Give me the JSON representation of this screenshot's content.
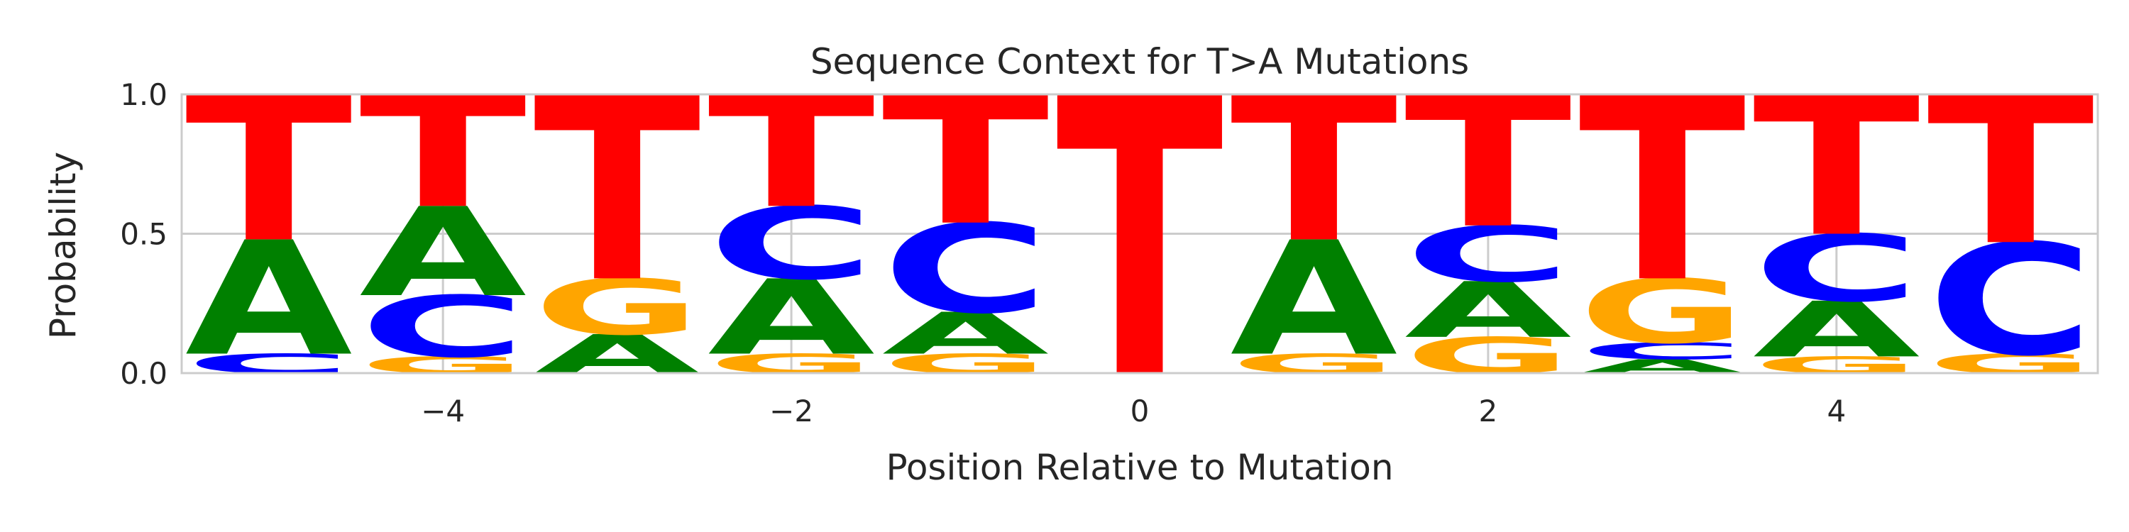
{
  "chart_data": {
    "type": "sequence-logo",
    "title": "Sequence Context for T>A Mutations",
    "xlabel": "Position Relative to Mutation",
    "ylabel": "Probability",
    "xlim": [
      -5.5,
      5.5
    ],
    "ylim": [
      0,
      1.0
    ],
    "xticks": [
      -4,
      -2,
      0,
      2,
      4
    ],
    "xtick_labels": [
      "−4",
      "−2",
      "0",
      "2",
      "4"
    ],
    "yticks": [
      0.0,
      0.5,
      1.0
    ],
    "ytick_labels": [
      "0.0",
      "0.5",
      "1.0"
    ],
    "grid": true,
    "letter_colors": {
      "A": "#008000",
      "C": "#0000ff",
      "G": "#ffa500",
      "T": "#ff0000"
    },
    "positions": [
      {
        "x": -5,
        "stack": [
          {
            "base": "C",
            "value": 0.07
          },
          {
            "base": "A",
            "value": 0.41
          },
          {
            "base": "T",
            "value": 0.52
          }
        ]
      },
      {
        "x": -4,
        "stack": [
          {
            "base": "G",
            "value": 0.06
          },
          {
            "base": "C",
            "value": 0.22
          },
          {
            "base": "A",
            "value": 0.32
          },
          {
            "base": "T",
            "value": 0.4
          }
        ]
      },
      {
        "x": -3,
        "stack": [
          {
            "base": "A",
            "value": 0.14
          },
          {
            "base": "G",
            "value": 0.2
          },
          {
            "base": "T",
            "value": 0.66
          }
        ]
      },
      {
        "x": -2,
        "stack": [
          {
            "base": "G",
            "value": 0.07
          },
          {
            "base": "A",
            "value": 0.27
          },
          {
            "base": "C",
            "value": 0.26
          },
          {
            "base": "T",
            "value": 0.4
          }
        ]
      },
      {
        "x": -1,
        "stack": [
          {
            "base": "G",
            "value": 0.07
          },
          {
            "base": "A",
            "value": 0.15
          },
          {
            "base": "C",
            "value": 0.32
          },
          {
            "base": "T",
            "value": 0.46
          }
        ]
      },
      {
        "x": 0,
        "stack": [
          {
            "base": "T",
            "value": 1.0
          }
        ]
      },
      {
        "x": 1,
        "stack": [
          {
            "base": "G",
            "value": 0.07
          },
          {
            "base": "A",
            "value": 0.41
          },
          {
            "base": "T",
            "value": 0.52
          }
        ]
      },
      {
        "x": 2,
        "stack": [
          {
            "base": "G",
            "value": 0.13
          },
          {
            "base": "A",
            "value": 0.2
          },
          {
            "base": "C",
            "value": 0.2
          },
          {
            "base": "T",
            "value": 0.47
          }
        ]
      },
      {
        "x": 3,
        "stack": [
          {
            "base": "A",
            "value": 0.05
          },
          {
            "base": "C",
            "value": 0.06
          },
          {
            "base": "G",
            "value": 0.23
          },
          {
            "base": "T",
            "value": 0.66
          }
        ]
      },
      {
        "x": 4,
        "stack": [
          {
            "base": "G",
            "value": 0.06
          },
          {
            "base": "A",
            "value": 0.2
          },
          {
            "base": "C",
            "value": 0.24
          },
          {
            "base": "T",
            "value": 0.5
          }
        ]
      },
      {
        "x": 5,
        "stack": [
          {
            "base": "G",
            "value": 0.07
          },
          {
            "base": "C",
            "value": 0.4
          },
          {
            "base": "T",
            "value": 0.53
          }
        ]
      }
    ]
  }
}
